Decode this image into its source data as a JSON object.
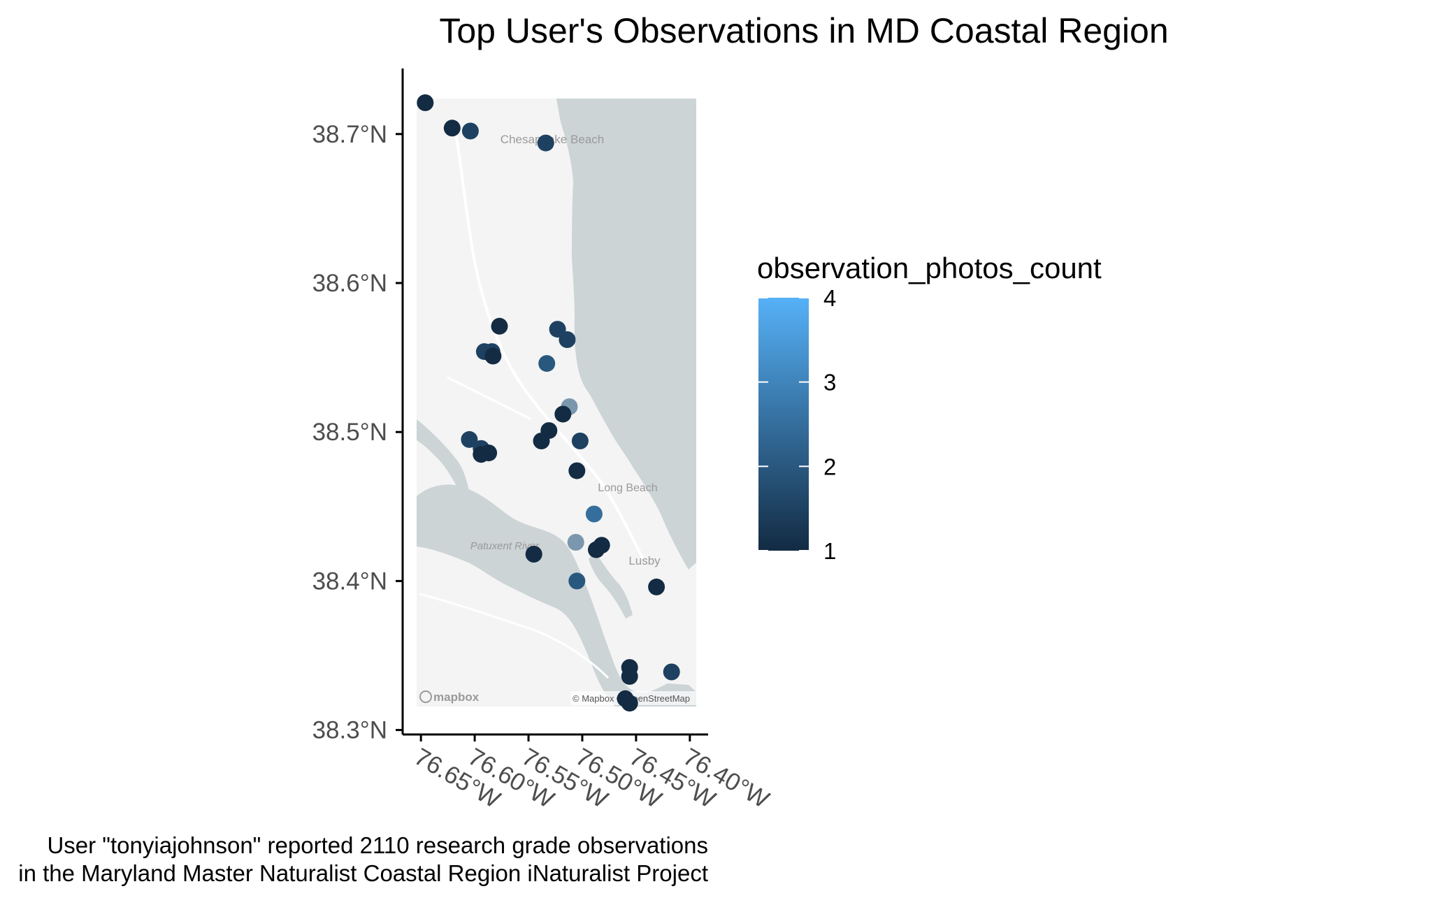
{
  "chart_data": {
    "type": "scatter",
    "title": "Top User's Observations in MD Coastal Region",
    "xlabel": "",
    "ylabel": "",
    "xlim": [
      -76.667,
      -76.383
    ],
    "ylim": [
      38.297,
      38.744
    ],
    "x_ticks": [
      -76.65,
      -76.6,
      -76.55,
      -76.5,
      -76.45,
      -76.4
    ],
    "x_tick_labels": [
      "76.65°W",
      "76.60°W",
      "76.55°W",
      "76.50°W",
      "76.45°W",
      "76.40°W"
    ],
    "y_ticks": [
      38.3,
      38.4,
      38.5,
      38.6,
      38.7
    ],
    "y_tick_labels": [
      "38.3°N",
      "38.4°N",
      "38.5°N",
      "38.6°N",
      "38.7°N"
    ],
    "grid": false,
    "legend": {
      "title": "observation_photos_count",
      "position": "right",
      "min": 1,
      "max": 4,
      "breaks": [
        1,
        2,
        3,
        4
      ],
      "break_labels": [
        "1",
        "2",
        "3",
        "4"
      ],
      "low_color": "#132B43",
      "high_color": "#56B1F7"
    },
    "basemap": {
      "attribution_left": "mapbox",
      "attribution_right": "© Mapbox © OpenStreetMap",
      "place_labels": [
        "Chesapeake Beach",
        "Long Beach",
        "Patuxent River",
        "Lusby"
      ],
      "water_color": "#ccd4d6",
      "land_color": "#f4f4f4"
    },
    "points": [
      {
        "x": -76.646,
        "y": 38.721,
        "photos": 1,
        "alpha": 1
      },
      {
        "x": -76.621,
        "y": 38.704,
        "photos": 1,
        "alpha": 1
      },
      {
        "x": -76.604,
        "y": 38.702,
        "photos": 1.5,
        "alpha": 1
      },
      {
        "x": -76.534,
        "y": 38.694,
        "photos": 1.5,
        "alpha": 1
      },
      {
        "x": -76.577,
        "y": 38.571,
        "photos": 1,
        "alpha": 1
      },
      {
        "x": -76.523,
        "y": 38.569,
        "photos": 1.5,
        "alpha": 1
      },
      {
        "x": -76.514,
        "y": 38.562,
        "photos": 1.5,
        "alpha": 1
      },
      {
        "x": -76.591,
        "y": 38.554,
        "photos": 1.5,
        "alpha": 1
      },
      {
        "x": -76.584,
        "y": 38.554,
        "photos": 1.5,
        "alpha": 1
      },
      {
        "x": -76.583,
        "y": 38.551,
        "photos": 1,
        "alpha": 1
      },
      {
        "x": -76.533,
        "y": 38.546,
        "photos": 2,
        "alpha": 1
      },
      {
        "x": -76.512,
        "y": 38.517,
        "photos": 2,
        "alpha": 0.6
      },
      {
        "x": -76.518,
        "y": 38.512,
        "photos": 1,
        "alpha": 1
      },
      {
        "x": -76.531,
        "y": 38.501,
        "photos": 1,
        "alpha": 1
      },
      {
        "x": -76.538,
        "y": 38.494,
        "photos": 1,
        "alpha": 1
      },
      {
        "x": -76.502,
        "y": 38.494,
        "photos": 1.5,
        "alpha": 1
      },
      {
        "x": -76.605,
        "y": 38.495,
        "photos": 1.5,
        "alpha": 1
      },
      {
        "x": -76.594,
        "y": 38.489,
        "photos": 1.5,
        "alpha": 1
      },
      {
        "x": -76.594,
        "y": 38.485,
        "photos": 1,
        "alpha": 1
      },
      {
        "x": -76.587,
        "y": 38.486,
        "photos": 1,
        "alpha": 1
      },
      {
        "x": -76.505,
        "y": 38.474,
        "photos": 1,
        "alpha": 1
      },
      {
        "x": -76.489,
        "y": 38.445,
        "photos": 2.5,
        "alpha": 1
      },
      {
        "x": -76.506,
        "y": 38.426,
        "photos": 2,
        "alpha": 0.6
      },
      {
        "x": -76.482,
        "y": 38.424,
        "photos": 1,
        "alpha": 1
      },
      {
        "x": -76.487,
        "y": 38.421,
        "photos": 1,
        "alpha": 1
      },
      {
        "x": -76.545,
        "y": 38.418,
        "photos": 1,
        "alpha": 1
      },
      {
        "x": -76.505,
        "y": 38.4,
        "photos": 2,
        "alpha": 1
      },
      {
        "x": -76.431,
        "y": 38.396,
        "photos": 1,
        "alpha": 1
      },
      {
        "x": -76.456,
        "y": 38.342,
        "photos": 1,
        "alpha": 1
      },
      {
        "x": -76.456,
        "y": 38.336,
        "photos": 1,
        "alpha": 1
      },
      {
        "x": -76.417,
        "y": 38.339,
        "photos": 1.5,
        "alpha": 1
      },
      {
        "x": -76.46,
        "y": 38.321,
        "photos": 1,
        "alpha": 1
      },
      {
        "x": -76.456,
        "y": 38.318,
        "photos": 1,
        "alpha": 1
      }
    ],
    "caption_lines": [
      "User \"tonyiajohnson\" reported 2110 research grade observations",
      "in the Maryland Master Naturalist Coastal Region iNaturalist Project"
    ]
  }
}
